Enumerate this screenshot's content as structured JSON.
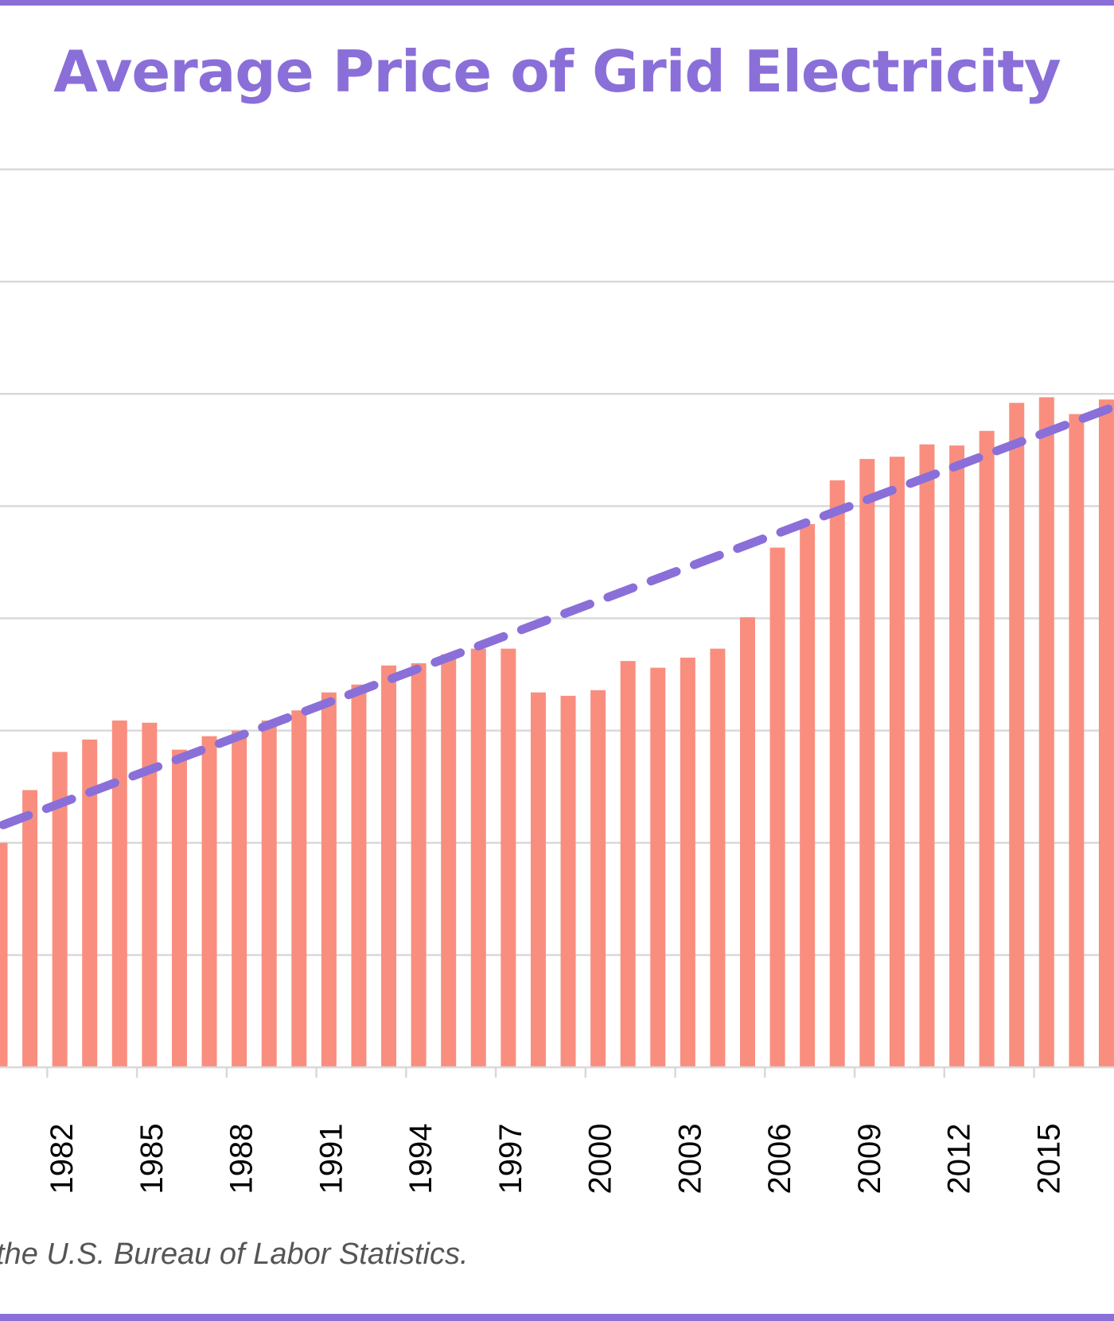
{
  "colors": {
    "accent": "#8a6fd9",
    "bar": "#f98e7f",
    "gridline": "#d9d9d9",
    "axis_text": "#000000",
    "note_text": "#555555"
  },
  "source_note": "the U.S. Bureau of Labor Statistics.",
  "chart_data": {
    "type": "bar",
    "title": "Average Price of Grid Electricity",
    "xlabel": "",
    "ylabel": "",
    "grid": true,
    "x_tick_labels": [
      "1982",
      "1985",
      "1988",
      "1991",
      "1994",
      "1997",
      "2000",
      "2003",
      "2006",
      "2009",
      "2012",
      "2015"
    ],
    "categories": [
      "1980",
      "1981",
      "1982",
      "1983",
      "1984",
      "1985",
      "1986",
      "1987",
      "1988",
      "1989",
      "1990",
      "1991",
      "1992",
      "1993",
      "1994",
      "1995",
      "1996",
      "1997",
      "1998",
      "1999",
      "2000",
      "2001",
      "2002",
      "2003",
      "2004",
      "2005",
      "2006",
      "2007",
      "2008",
      "2009",
      "2010",
      "2011",
      "2012",
      "2013",
      "2014",
      "2015",
      "2016",
      "2017"
    ],
    "values": [
      2.0,
      2.47,
      2.81,
      2.92,
      3.09,
      3.07,
      2.83,
      2.95,
      3.0,
      3.09,
      3.18,
      3.34,
      3.41,
      3.58,
      3.6,
      3.68,
      3.73,
      3.73,
      3.34,
      3.31,
      3.36,
      3.62,
      3.56,
      3.65,
      3.73,
      4.01,
      4.63,
      4.84,
      5.23,
      5.42,
      5.44,
      5.55,
      5.54,
      5.67,
      5.92,
      5.97,
      5.82,
      5.95
    ],
    "ylim": [
      0,
      8
    ],
    "trendline": {
      "style": "dashed",
      "start": 2.16,
      "end": 5.86
    }
  }
}
